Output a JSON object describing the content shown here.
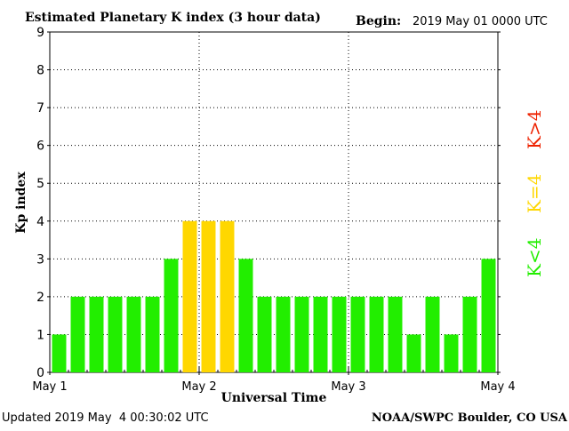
{
  "chart_data": {
    "type": "bar",
    "title": "Estimated Planetary K index (3 hour data)",
    "begin_label": "Begin:",
    "begin_value": "2019 May 01 0000 UTC",
    "ylabel": "Kp index",
    "xlabel": "Universal Time",
    "ylim": [
      0,
      9
    ],
    "yticks": [
      "0",
      "1",
      "2",
      "3",
      "4",
      "5",
      "6",
      "7",
      "8",
      "9"
    ],
    "xtick_labels": [
      "May 1",
      "May 2",
      "May 3",
      "May 4"
    ],
    "grid": true,
    "values": [
      1,
      2,
      2,
      2,
      2,
      2,
      3,
      4,
      4,
      4,
      3,
      2,
      2,
      2,
      2,
      2,
      2,
      2,
      2,
      1,
      2,
      1,
      2,
      3
    ],
    "colors": {
      "low": "#22ee00",
      "equal": "#ffd700",
      "high": "#ee2200"
    },
    "legend": {
      "low": "K<4",
      "equal": "K=4",
      "high": "K>4",
      "placement": "right"
    }
  },
  "footer": {
    "updated": "Updated 2019 May  4 00:30:02 UTC",
    "credit": "NOAA/SWPC Boulder, CO USA"
  }
}
